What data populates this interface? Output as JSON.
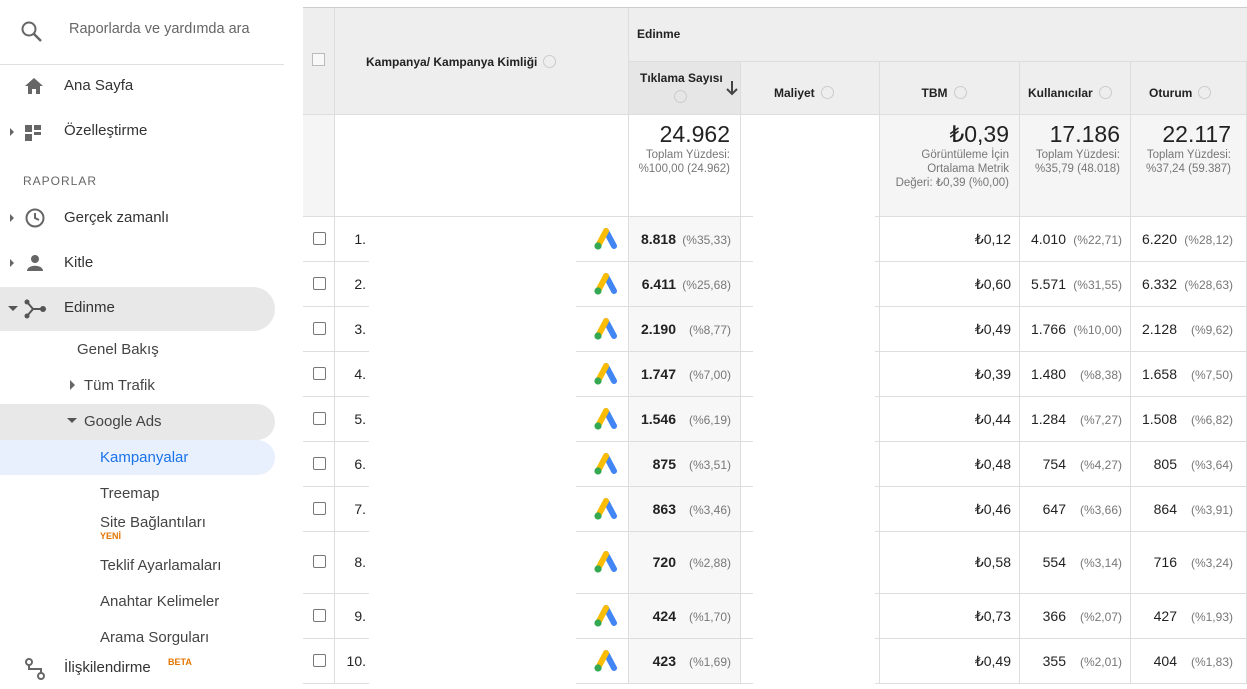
{
  "sidebar": {
    "search": "Raporlarda ve yardımda ara",
    "items": [
      "Ana Sayfa",
      "Özelleştirme"
    ],
    "section": "RAPORLAR",
    "reports": [
      "Gerçek zamanlı",
      "Kitle",
      "Edinme"
    ],
    "acquisition": [
      "Genel Bakış",
      "Tüm Trafik",
      "Google Ads"
    ],
    "google_ads": [
      "Kampanyalar",
      "Treemap",
      "Site Bağlantıları",
      "Teklif Ayarlamaları",
      "Anahtar Kelimeler",
      "Arama Sorguları"
    ],
    "new_badge": "YENİ",
    "attribution": "İlişkilendirme",
    "beta_badge": "BETA"
  },
  "table": {
    "group_header": "Edinme",
    "columns": [
      "Kampanya/ Kampanya Kimliği",
      "Tıklama Sayısı",
      "Maliyet",
      "TBM",
      "Kullanıcılar",
      "Oturum"
    ],
    "totals": {
      "clicks": "24.962",
      "clicks_note": "Toplam Yüzdesi: %100,00 (24.962)",
      "cpc": "₺0,39",
      "cpc_note": "Görüntüleme İçin Ortalama Metrik Değeri: ₺0,39 (%0,00)",
      "users": "17.186",
      "users_note": "Toplam Yüzdesi: %35,79 (48.018)",
      "sessions": "22.117",
      "sessions_note": "Toplam Yüzdesi: %37,24 (59.387)"
    },
    "rows": [
      [
        "1.",
        "8.818",
        "(%35,33)",
        "₺0,12",
        "4.010",
        "(%22,71)",
        "6.220",
        "(%28,12)"
      ],
      [
        "2.",
        "6.411",
        "(%25,68)",
        "₺0,60",
        "5.571",
        "(%31,55)",
        "6.332",
        "(%28,63)"
      ],
      [
        "3.",
        "2.190",
        "(%8,77)",
        "₺0,49",
        "1.766",
        "(%10,00)",
        "2.128",
        "(%9,62)"
      ],
      [
        "4.",
        "1.747",
        "(%7,00)",
        "₺0,39",
        "1.480",
        "(%8,38)",
        "1.658",
        "(%7,50)"
      ],
      [
        "5.",
        "1.546",
        "(%6,19)",
        "₺0,44",
        "1.284",
        "(%7,27)",
        "1.508",
        "(%6,82)"
      ],
      [
        "6.",
        "875",
        "(%3,51)",
        "₺0,48",
        "754",
        "(%4,27)",
        "805",
        "(%3,64)"
      ],
      [
        "7.",
        "863",
        "(%3,46)",
        "₺0,46",
        "647",
        "(%3,66)",
        "864",
        "(%3,91)"
      ],
      [
        "8.",
        "720",
        "(%2,88)",
        "₺0,58",
        "554",
        "(%3,14)",
        "716",
        "(%3,24)"
      ],
      [
        "9.",
        "424",
        "(%1,70)",
        "₺0,73",
        "366",
        "(%2,07)",
        "427",
        "(%1,93)"
      ],
      [
        "10.",
        "423",
        "(%1,69)",
        "₺0,49",
        "355",
        "(%2,01)",
        "404",
        "(%1,83)"
      ]
    ]
  }
}
